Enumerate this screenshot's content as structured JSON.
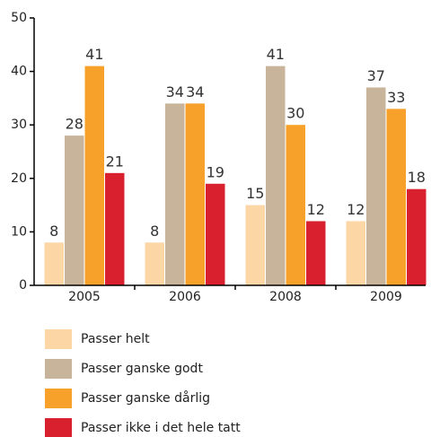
{
  "chart_data": {
    "type": "bar",
    "categories": [
      "2005",
      "2006",
      "2008",
      "2009"
    ],
    "series": [
      {
        "name": "Passer helt",
        "color": "#fdd6a6",
        "values": [
          8,
          8,
          15,
          12
        ]
      },
      {
        "name": "Passer ganske godt",
        "color": "#c8b49a",
        "values": [
          28,
          34,
          41,
          37
        ]
      },
      {
        "name": "Passer ganske dårlig",
        "color": "#f7a12a",
        "values": [
          41,
          34,
          30,
          33
        ]
      },
      {
        "name": "Passer ikke i det hele tatt",
        "color": "#d9202f",
        "values": [
          21,
          19,
          12,
          18
        ]
      }
    ],
    "ylim": [
      0,
      50
    ],
    "yticks": [
      0,
      10,
      20,
      30,
      40,
      50
    ],
    "grid": false
  }
}
